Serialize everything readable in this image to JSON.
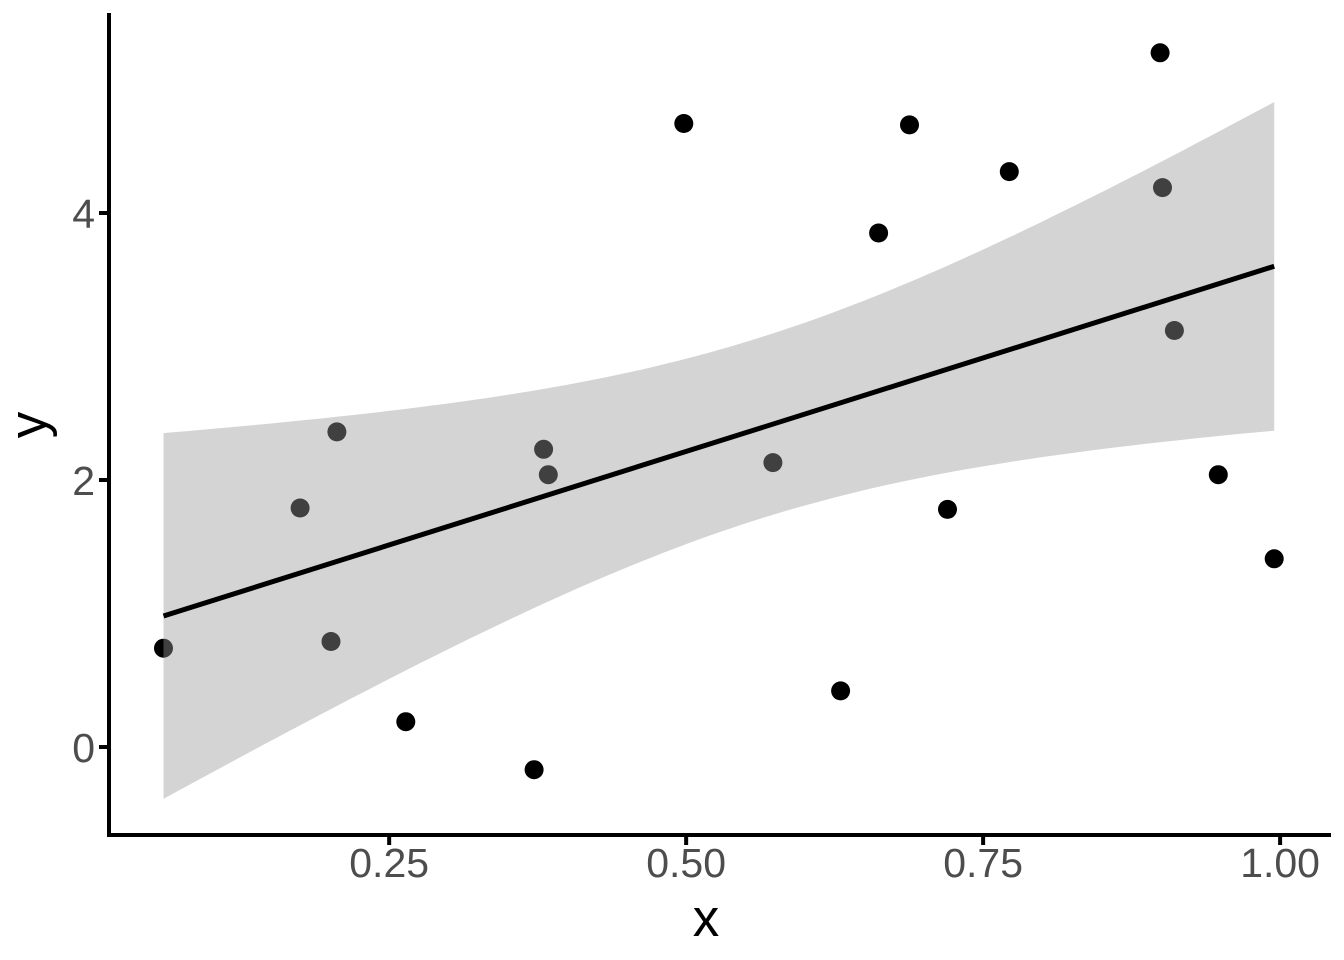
{
  "figure": {
    "background": "#FFFFFF"
  },
  "chart_data": {
    "type": "scatter",
    "title": "",
    "xlabel": "x",
    "ylabel": "y",
    "x_ticks": [
      {
        "value": 0.25,
        "label": "0.25"
      },
      {
        "value": 0.5,
        "label": "0.50"
      },
      {
        "value": 0.75,
        "label": "0.75"
      },
      {
        "value": 1.0,
        "label": "1.00"
      }
    ],
    "y_ticks": [
      {
        "value": 0,
        "label": "0"
      },
      {
        "value": 2,
        "label": "2"
      },
      {
        "value": 4,
        "label": "4"
      }
    ],
    "xlim": [
      0.015,
      1.042
    ],
    "ylim": [
      -0.659,
      5.483
    ],
    "grid": false,
    "legend": "none",
    "series": [
      {
        "name": "observations",
        "type": "points",
        "color": "#000000",
        "points": [
          [
            0.06,
            0.74
          ],
          [
            0.175,
            1.79
          ],
          [
            0.206,
            2.36
          ],
          [
            0.201,
            0.79
          ],
          [
            0.264,
            0.19
          ],
          [
            0.372,
            -0.17
          ],
          [
            0.38,
            2.23
          ],
          [
            0.384,
            2.04
          ],
          [
            0.498,
            4.67
          ],
          [
            0.573,
            2.13
          ],
          [
            0.63,
            0.42
          ],
          [
            0.662,
            3.85
          ],
          [
            0.688,
            4.66
          ],
          [
            0.72,
            1.78
          ],
          [
            0.772,
            4.31
          ],
          [
            0.899,
            5.2
          ],
          [
            0.901,
            4.19
          ],
          [
            0.911,
            3.12
          ],
          [
            0.948,
            2.04
          ],
          [
            0.995,
            1.41
          ]
        ]
      },
      {
        "name": "lm-smooth",
        "type": "smooth",
        "method": "lm",
        "ci_level": 0.95,
        "x_range": [
          0.06,
          0.995
        ],
        "line_color": "#000000",
        "band_color": "#999999",
        "band_opacity": 0.42
      }
    ],
    "colors": {
      "axis_line": "#000000",
      "tick_mark": "#000000",
      "tick_label": "#4D4D4D",
      "axis_title": "#000000",
      "panel_background": "#FFFFFF"
    }
  }
}
